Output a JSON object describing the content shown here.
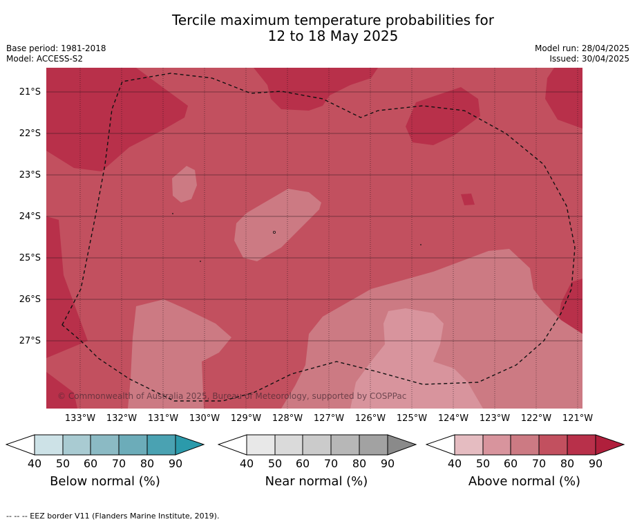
{
  "header": {
    "title_line1": "Tercile maximum temperature probabilities for",
    "title_line2": "12 to 18 May 2025",
    "base_period": "Base period: 1981-2018",
    "model": "Model: ACCESS-S2",
    "model_run": "Model run: 28/04/2025",
    "issued": "Issued: 30/04/2025"
  },
  "map": {
    "lat_labels": [
      "21°S",
      "22°S",
      "23°S",
      "24°S",
      "25°S",
      "26°S",
      "27°S"
    ],
    "lon_labels": [
      "133°W",
      "132°W",
      "131°W",
      "130°W",
      "129°W",
      "128°W",
      "127°W",
      "126°W",
      "125°W",
      "124°W",
      "123°W",
      "122°W",
      "121°W"
    ],
    "copyright": "© Commonwealth of Australia 2025, Bureau of Meteorology, supported by COSPPac"
  },
  "legend": {
    "below": {
      "label": "Below normal (%)",
      "ticks": [
        "40",
        "50",
        "60",
        "70",
        "80",
        "90"
      ],
      "colors": [
        "#cde2e7",
        "#a9cbd2",
        "#8bbac4",
        "#6cacb9",
        "#4aa2b2",
        "#2b9aab"
      ]
    },
    "near": {
      "label": "Near normal (%)",
      "ticks": [
        "40",
        "50",
        "60",
        "70",
        "80",
        "90"
      ],
      "colors": [
        "#e8e8e8",
        "#dadada",
        "#cbcbcb",
        "#b7b7b7",
        "#a2a2a2",
        "#8a8a8a"
      ]
    },
    "above": {
      "label": "Above normal (%)",
      "ticks": [
        "40",
        "50",
        "60",
        "70",
        "80",
        "90"
      ],
      "colors": [
        "#e5bcc1",
        "#d8949d",
        "#cc7a83",
        "#c2505f",
        "#b8304a",
        "#b01f3c"
      ]
    }
  },
  "footnote": "--  --  -- EEZ border V11 (Flanders Marine Institute, 2019)."
}
